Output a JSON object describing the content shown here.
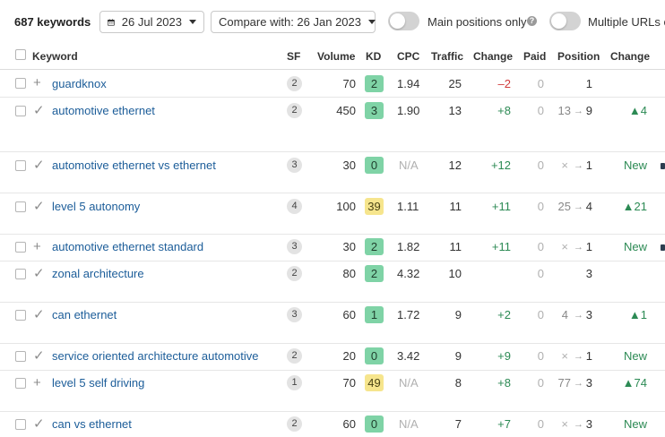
{
  "toolbar": {
    "keywords_count": "687 keywords",
    "date": "26 Jul 2023",
    "compare": "Compare with: 26 Jan 2023",
    "main_positions_label": "Main positions only",
    "multiple_urls_label": "Multiple URLs o",
    "help_glyph": "?"
  },
  "table": {
    "headers": {
      "keyword": "Keyword",
      "sf": "SF",
      "volume": "Volume",
      "kd": "KD",
      "cpc": "CPC",
      "traffic": "Traffic",
      "change": "Change",
      "paid": "Paid",
      "position": "Position",
      "pos_change": "Change"
    },
    "rows": [
      {
        "mark": "+",
        "keyword": "guardknox",
        "sf": "2",
        "volume": "70",
        "kd": "2",
        "kd_level": "green",
        "cpc": "1.94",
        "traffic": "25",
        "change": "–2",
        "paid": "0",
        "pos_from": "",
        "arrow": "",
        "pos_to": "1",
        "pos_change": "",
        "lock": false
      },
      {
        "mark": "✓",
        "keyword": "automotive ethernet",
        "sf": "2",
        "volume": "450",
        "kd": "3",
        "kd_level": "green",
        "cpc": "1.90",
        "traffic": "13",
        "change": "+8",
        "paid": "0",
        "pos_from": "13",
        "arrow": "→",
        "pos_to": "9",
        "pos_change": "▲4",
        "lock": false
      },
      {
        "mark": "✓",
        "keyword": "automotive ethernet vs ethernet",
        "sf": "3",
        "volume": "30",
        "kd": "0",
        "kd_level": "green",
        "cpc": "N/A",
        "traffic": "12",
        "change": "+12",
        "paid": "0",
        "pos_from": "×",
        "arrow": "→",
        "pos_to": "1",
        "pos_change": "New",
        "lock": true
      },
      {
        "mark": "✓",
        "keyword": "level 5 autonomy",
        "sf": "4",
        "volume": "100",
        "kd": "39",
        "kd_level": "yellow",
        "cpc": "1.11",
        "traffic": "11",
        "change": "+11",
        "paid": "0",
        "pos_from": "25",
        "arrow": "→",
        "pos_to": "4",
        "pos_change": "▲21",
        "lock": false
      },
      {
        "mark": "+",
        "keyword": "automotive ethernet standard",
        "sf": "3",
        "volume": "30",
        "kd": "2",
        "kd_level": "green",
        "cpc": "1.82",
        "traffic": "11",
        "change": "+11",
        "paid": "0",
        "pos_from": "×",
        "arrow": "→",
        "pos_to": "1",
        "pos_change": "New",
        "lock": true
      },
      {
        "mark": "✓",
        "keyword": "zonal architecture",
        "sf": "2",
        "volume": "80",
        "kd": "2",
        "kd_level": "green",
        "cpc": "4.32",
        "traffic": "10",
        "change": "",
        "paid": "0",
        "pos_from": "",
        "arrow": "",
        "pos_to": "3",
        "pos_change": "",
        "lock": false
      },
      {
        "mark": "✓",
        "keyword": "can ethernet",
        "sf": "3",
        "volume": "60",
        "kd": "1",
        "kd_level": "green",
        "cpc": "1.72",
        "traffic": "9",
        "change": "+2",
        "paid": "0",
        "pos_from": "4",
        "arrow": "→",
        "pos_to": "3",
        "pos_change": "▲1",
        "lock": false
      },
      {
        "mark": "✓",
        "keyword": "service oriented architecture automotive",
        "sf": "2",
        "volume": "20",
        "kd": "0",
        "kd_level": "green",
        "cpc": "3.42",
        "traffic": "9",
        "change": "+9",
        "paid": "0",
        "pos_from": "×",
        "arrow": "→",
        "pos_to": "1",
        "pos_change": "New",
        "lock": false
      },
      {
        "mark": "+",
        "keyword": "level 5 self driving",
        "sf": "1",
        "volume": "70",
        "kd": "49",
        "kd_level": "yellow",
        "cpc": "N/A",
        "traffic": "8",
        "change": "+8",
        "paid": "0",
        "pos_from": "77",
        "arrow": "→",
        "pos_to": "3",
        "pos_change": "▲74",
        "lock": false
      },
      {
        "mark": "✓",
        "keyword": "can vs ethernet",
        "sf": "2",
        "volume": "60",
        "kd": "0",
        "kd_level": "green",
        "cpc": "N/A",
        "traffic": "7",
        "change": "+7",
        "paid": "0",
        "pos_from": "×",
        "arrow": "→",
        "pos_to": "3",
        "pos_change": "New",
        "lock": false
      }
    ]
  },
  "colors": {
    "link": "#1c5d99",
    "positive": "#2c8a54",
    "negative": "#d13a3a",
    "kd_green": "#7fd3a6",
    "kd_yellow": "#f6e58d"
  }
}
